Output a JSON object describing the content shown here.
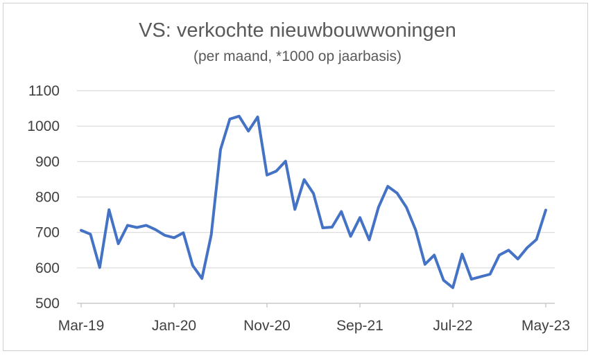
{
  "chart_data": {
    "type": "line",
    "title": "VS: verkochte nieuwbouwwoningen",
    "subtitle": "(per maand, *1000 op jaarbasis)",
    "xlabel": "",
    "ylabel": "",
    "ylim": [
      500,
      1100
    ],
    "yticks": [
      500,
      600,
      700,
      800,
      900,
      1000,
      1100
    ],
    "xtick_labels": [
      "Mar-19",
      "Jan-20",
      "Nov-20",
      "Sep-21",
      "Jul-22",
      "May-23"
    ],
    "grid": true,
    "legend": "none",
    "line_color": "#4472C4",
    "x": [
      "Mar-19",
      "Apr-19",
      "May-19",
      "Jun-19",
      "Jul-19",
      "Aug-19",
      "Sep-19",
      "Oct-19",
      "Nov-19",
      "Dec-19",
      "Jan-20",
      "Feb-20",
      "Mar-20",
      "Apr-20",
      "May-20",
      "Jun-20",
      "Jul-20",
      "Aug-20",
      "Sep-20",
      "Oct-20",
      "Nov-20",
      "Dec-20",
      "Jan-21",
      "Feb-21",
      "Mar-21",
      "Apr-21",
      "May-21",
      "Jun-21",
      "Jul-21",
      "Aug-21",
      "Sep-21",
      "Oct-21",
      "Nov-21",
      "Dec-21",
      "Jan-22",
      "Feb-22",
      "Mar-22",
      "Apr-22",
      "May-22",
      "Jun-22",
      "Jul-22",
      "Aug-22",
      "Sep-22",
      "Oct-22",
      "Nov-22",
      "Dec-22",
      "Jan-23",
      "Feb-23",
      "Mar-23",
      "Apr-23",
      "May-23"
    ],
    "series": [
      {
        "values": [
          706,
          695,
          601,
          764,
          668,
          720,
          714,
          720,
          708,
          692,
          685,
          699,
          607,
          570,
          693,
          934,
          1020,
          1028,
          986,
          1026,
          862,
          873,
          901,
          765,
          849,
          810,
          713,
          715,
          759,
          689,
          742,
          679,
          771,
          830,
          811,
          771,
          707,
          610,
          636,
          565,
          544,
          639,
          568,
          575,
          582,
          636,
          650,
          625,
          657,
          680,
          763
        ]
      }
    ]
  }
}
